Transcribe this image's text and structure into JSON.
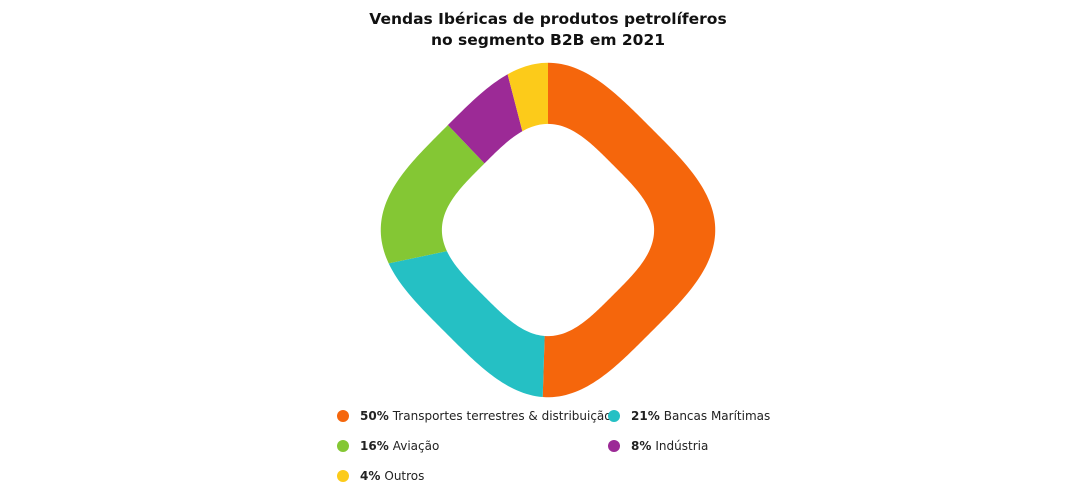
{
  "chart_data": {
    "type": "pie",
    "title": [
      "Vendas Ibéricas de produtos petrolíferos",
      "no segmento B2B em 2021"
    ],
    "categories": [
      "Transportes terrestres & distribuição",
      "Bancas Marítimas",
      "Aviação",
      "Indústria",
      "Outros"
    ],
    "values": [
      50,
      21,
      16,
      8,
      4
    ],
    "value_labels": [
      "50%",
      "21%",
      "16%",
      "8%",
      "4%"
    ],
    "colors": [
      "#F5660C",
      "#25C0C4",
      "#84C734",
      "#9C2A96",
      "#FCCB1A"
    ],
    "donut": true,
    "legend_position": "bottom"
  }
}
